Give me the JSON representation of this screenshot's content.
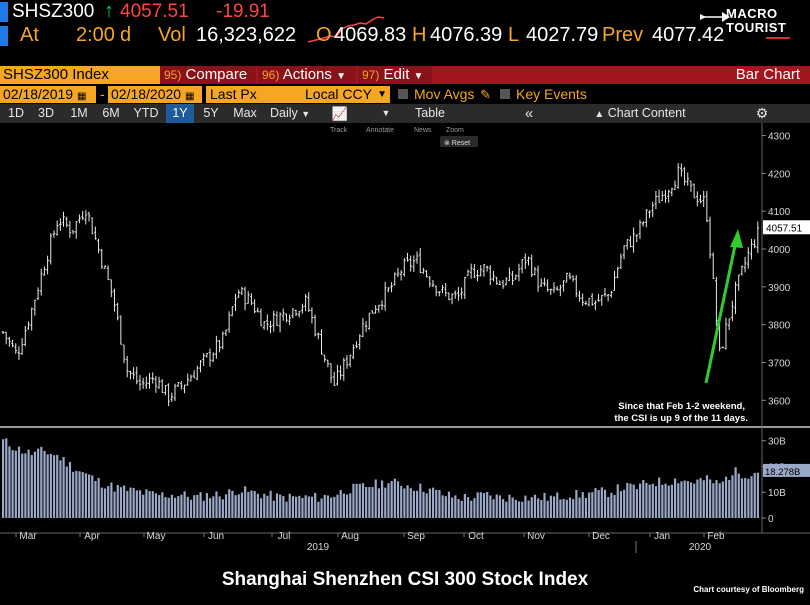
{
  "quote": {
    "ticker": "SHSZ300",
    "arrow": "↑",
    "last": "4057.51",
    "change": "-19.91",
    "at_label": "At",
    "time": "2:00",
    "d_label": "d",
    "vol_label": "Vol",
    "volume": "16,323,622",
    "open_label": "O",
    "open": "4069.83",
    "high_label": "H",
    "high": "4076.39",
    "low_label": "L",
    "low": "4027.79",
    "prev_label": "Prev",
    "prev": "4077.42"
  },
  "logo": {
    "line1": "MACRO",
    "line2": "TOURIST"
  },
  "toolbar": {
    "security": "SHSZ300 Index",
    "compare_num": "95)",
    "compare": "Compare",
    "actions_num": "96)",
    "actions": "Actions",
    "edit_num": "97)",
    "edit": "Edit",
    "title": "Bar Chart"
  },
  "settings": {
    "start_date": "02/18/2019",
    "dash": "-",
    "end_date": "02/18/2020",
    "field": "Last Px",
    "currency": "Local CCY",
    "mov_avgs": "Mov Avgs",
    "key_events": "Key Events"
  },
  "ranges": {
    "items": [
      "1D",
      "3D",
      "1M",
      "6M",
      "YTD",
      "1Y",
      "5Y",
      "Max"
    ],
    "selected": "1Y",
    "frequency": "Daily",
    "table": "Table",
    "chart_content": "Chart Content"
  },
  "chart_tools": {
    "track": "Track",
    "annotate": "Annotate",
    "news": "News",
    "zoom": "Zoom",
    "reset": "Reset"
  },
  "annotation": {
    "line1": "Since that Feb 1-2 weekend,",
    "line2": "the CSI is up 9 of the 11 days."
  },
  "footer": {
    "title": "Shanghai Shenzhen CSI 300 Stock Index",
    "credit": "Chart courtesy of Bloomberg"
  },
  "colors": {
    "accent_orange": "#f5a623",
    "toolbar_red": "#a4151e",
    "volume_blue": "#9aa9c8",
    "arrow_green": "#2ecc2e",
    "up": "#00d26a",
    "down": "#ff4444"
  },
  "chart_data": {
    "type": "bar",
    "subtype": "ohlc",
    "months": [
      "Mar",
      "Apr",
      "May",
      "Jun",
      "Jul",
      "Aug",
      "Sep",
      "Oct",
      "Nov",
      "Dec",
      "Jan",
      "Feb"
    ],
    "year_labels": [
      "2019",
      "2020"
    ],
    "price_ticks": [
      3600,
      3700,
      3800,
      3900,
      4000,
      4100,
      4200,
      4300
    ],
    "ylim": [
      3540,
      4320
    ],
    "last_label": "4057.51",
    "volume_ticks": [
      "0",
      "10B",
      "20B",
      "30B"
    ],
    "volume_last_label": "18.278B",
    "weekly_close": [
      3780,
      3720,
      3830,
      3960,
      4080,
      4050,
      4110,
      3990,
      3870,
      3680,
      3640,
      3660,
      3610,
      3640,
      3680,
      3720,
      3760,
      3890,
      3860,
      3800,
      3820,
      3840,
      3860,
      3750,
      3640,
      3710,
      3790,
      3850,
      3890,
      3950,
      3970,
      3920,
      3880,
      3870,
      3940,
      3950,
      3910,
      3920,
      3980,
      3900,
      3880,
      3920,
      3870,
      3860,
      3880,
      4000,
      4040,
      4110,
      4150,
      4200,
      4150,
      4120,
      3720,
      3870,
      3980,
      4057.51
    ],
    "weekly_volume_B": [
      30,
      27,
      25,
      26,
      24,
      20,
      17,
      14,
      12,
      11,
      10,
      9,
      9,
      9,
      8,
      9,
      9,
      11,
      10,
      9,
      8,
      8,
      8,
      8,
      9,
      11,
      12,
      13,
      14,
      13,
      12,
      11,
      9,
      8,
      8,
      9,
      8,
      8,
      8,
      8,
      8,
      9,
      9,
      10,
      10,
      12,
      12,
      14,
      14,
      15,
      14,
      15,
      13,
      18,
      17,
      18.278
    ]
  }
}
